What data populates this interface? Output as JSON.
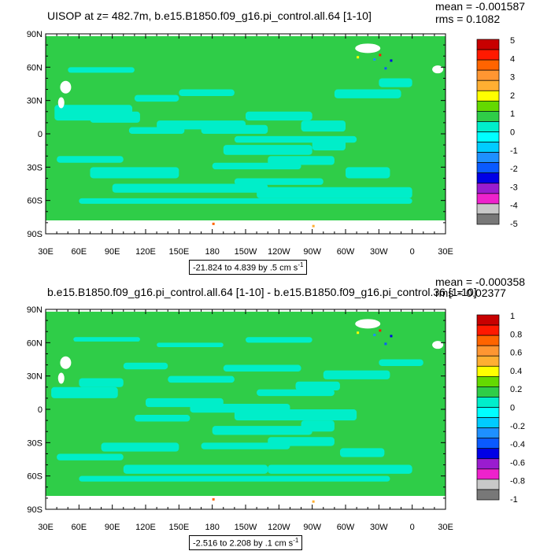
{
  "panel_top": {
    "title": "UISOP at z= 482.7m, b.e15.B1850.f09_g16.pi_control.all.64 [1-10]",
    "mean": "mean = -0.001587",
    "rms": "rms = 0.1082",
    "range": "-21.824 to 4.839 by .5 cm s",
    "range_exp": "-1",
    "legend_labels": [
      "5",
      "4",
      "3",
      "2",
      "1",
      "0",
      "-1",
      "-2",
      "-3",
      "-4",
      "-5"
    ]
  },
  "panel_bottom": {
    "title": "b.e15.B1850.f09_g16.pi_control.all.64 [1-10] - b.e15.B1850.f09_g16.pi_control.36 [1-10]",
    "mean": "mean = -0.000358",
    "rms": "rms = 0.02377",
    "range": "-2.516 to 2.208 by .1 cm s",
    "range_exp": "-1",
    "legend_labels": [
      "1",
      "0.8",
      "0.6",
      "0.4",
      "0.2",
      "0",
      "-0.2",
      "-0.4",
      "-0.6",
      "-0.8",
      "-1"
    ]
  },
  "colors": {
    "palette": [
      "#c80000",
      "#ff1900",
      "#ff6400",
      "#ff9632",
      "#ffaf32",
      "#ffff00",
      "#64d900",
      "#2fcd48",
      "#00eecb",
      "#00ffff",
      "#00ccff",
      "#1e90ff",
      "#0a5aff",
      "#0000e6",
      "#9a1ccf",
      "#ee22cc",
      "#c8c8c8",
      "#787878"
    ],
    "background_field": "#2fcd48",
    "ocean_field": "#00eec9",
    "land_missing": "#ffffff"
  },
  "axes": {
    "lat_labels": [
      "90N",
      "60N",
      "30N",
      "0",
      "30S",
      "60S",
      "90S"
    ],
    "lon_labels": [
      "30E",
      "60E",
      "90E",
      "120E",
      "150E",
      "180",
      "150W",
      "120W",
      "90W",
      "60W",
      "30W",
      "0",
      "30E"
    ]
  }
}
